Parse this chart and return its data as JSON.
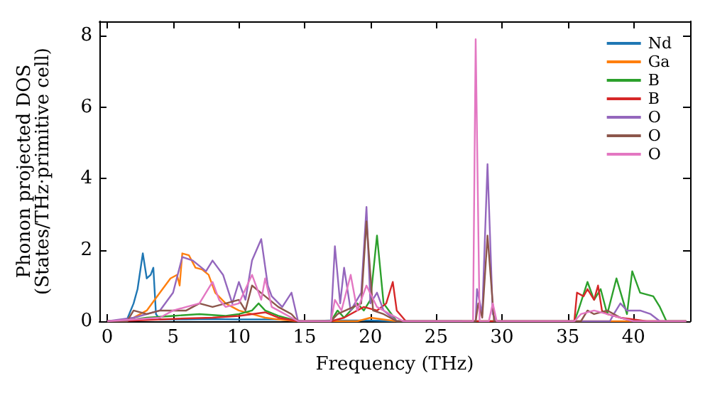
{
  "chart_data": {
    "type": "line",
    "xlabel": "Frequency (THz)",
    "ylabel": "Phonon projected DOS\n(States/THz·primitive cell)",
    "xlim": [
      -0.6,
      44.3
    ],
    "xticks": [
      0,
      5,
      10,
      15,
      20,
      25,
      30,
      35,
      40
    ],
    "ylim": [
      0,
      8.4
    ],
    "yticks": [
      0,
      2,
      4,
      6,
      8
    ],
    "grid": false,
    "legend": "top right",
    "marker": "none",
    "line_style": "solid",
    "series": [
      {
        "name": "Nd",
        "color": "#1f77b4",
        "x": [
          0,
          1,
          1.5,
          2,
          2.3,
          2.7,
          3.0,
          3.3,
          3.5,
          3.7,
          4,
          6,
          8,
          10,
          12,
          13,
          15,
          17,
          20,
          22,
          27
        ],
        "values": [
          0,
          0.02,
          0.05,
          0.5,
          0.9,
          1.9,
          1.2,
          1.3,
          1.5,
          0.2,
          0.05,
          0.05,
          0.06,
          0.05,
          0.05,
          0.05,
          0,
          0.02,
          0.02,
          0,
          0
        ]
      },
      {
        "name": "Ga",
        "color": "#ff7f0e",
        "x": [
          0,
          1.5,
          3,
          4,
          4.8,
          5.3,
          5.5,
          5.7,
          6.2,
          6.7,
          7.2,
          7.7,
          8.2,
          9,
          10,
          11,
          12,
          13,
          14.5,
          19,
          20,
          21,
          22,
          44
        ],
        "values": [
          0,
          0,
          0.3,
          0.8,
          1.2,
          1.3,
          1.0,
          1.9,
          1.85,
          1.5,
          1.45,
          1.3,
          0.8,
          0.5,
          0.3,
          0.2,
          0.1,
          0.05,
          0,
          0,
          0.1,
          0.05,
          0,
          0
        ]
      },
      {
        "name": "B",
        "color": "#2ca02c",
        "x": [
          0,
          2,
          3,
          5,
          7,
          9,
          10,
          11,
          11.5,
          12,
          13,
          14.5,
          17,
          17.5,
          18,
          19,
          19.5,
          20,
          20.5,
          21,
          22,
          35.5,
          35.8,
          36.5,
          37,
          37.5,
          38,
          38.7,
          39.5,
          39.9,
          40.5,
          41.5,
          42,
          42.5,
          44
        ],
        "values": [
          0,
          0.05,
          0.1,
          0.15,
          0.2,
          0.15,
          0.2,
          0.3,
          0.5,
          0.3,
          0.15,
          0,
          0,
          0.3,
          0.1,
          0.5,
          0.3,
          0.6,
          2.4,
          0.5,
          0,
          0,
          0.3,
          1.1,
          0.6,
          0.9,
          0.2,
          1.2,
          0.2,
          1.4,
          0.8,
          0.7,
          0.4,
          0,
          0
        ]
      },
      {
        "name": "B",
        "color": "#d62728",
        "x": [
          0,
          2,
          4,
          6,
          8,
          10,
          11,
          12,
          13,
          14.5,
          17,
          18,
          19.5,
          20.5,
          21.2,
          21.7,
          22,
          22.7,
          35.5,
          35.7,
          36.2,
          36.5,
          37,
          37.3,
          37.6,
          38,
          39,
          40,
          41,
          44
        ],
        "values": [
          0,
          0.02,
          0.05,
          0.08,
          0.1,
          0.15,
          0.2,
          0.25,
          0.1,
          0,
          0,
          0.1,
          0.4,
          0.3,
          0.5,
          1.1,
          0.3,
          0,
          0,
          0.8,
          0.7,
          0.9,
          0.6,
          1.0,
          0.3,
          0.2,
          0.1,
          0.05,
          0,
          0
        ]
      },
      {
        "name": "O",
        "color": "#9467bd",
        "x": [
          0,
          2,
          4,
          5,
          5.7,
          6.5,
          7.5,
          8,
          8.8,
          9.5,
          10,
          10.5,
          11,
          11.7,
          12.2,
          12.5,
          13.3,
          14,
          14.5,
          17,
          17.3,
          17.7,
          18,
          18.5,
          19.3,
          19.7,
          20,
          20.5,
          21,
          22,
          28,
          28.1,
          28.5,
          28.9,
          29.3,
          29.6,
          38.2,
          38.5,
          39,
          39.5,
          40.5,
          41.3,
          42,
          44
        ],
        "values": [
          0,
          0.1,
          0.3,
          0.8,
          1.8,
          1.7,
          1.4,
          1.7,
          1.3,
          0.5,
          1.1,
          0.6,
          1.7,
          2.3,
          1.0,
          0.7,
          0.4,
          0.8,
          0,
          0,
          2.1,
          0.5,
          1.5,
          0.3,
          0.8,
          3.2,
          0.5,
          0.8,
          0.3,
          0,
          0,
          0.9,
          0.2,
          4.4,
          0.2,
          0,
          0,
          0.2,
          0.5,
          0.3,
          0.3,
          0.2,
          0,
          0
        ]
      },
      {
        "name": "O",
        "color": "#8c564b",
        "x": [
          0,
          1.5,
          2,
          3,
          4,
          5,
          6,
          7,
          8,
          9,
          10,
          10.5,
          11,
          12,
          13,
          14,
          14.5,
          17,
          17.5,
          19.3,
          19.7,
          20.2,
          21,
          22,
          28,
          28.2,
          28.5,
          28.9,
          29.4,
          36,
          36.5,
          37,
          38,
          39,
          40,
          44
        ],
        "values": [
          0,
          0,
          0.3,
          0.2,
          0.3,
          0.3,
          0.3,
          0.5,
          0.4,
          0.5,
          0.6,
          0.3,
          1.0,
          0.7,
          0.4,
          0.2,
          0,
          0,
          0.2,
          0.5,
          2.8,
          0.3,
          0.2,
          0,
          0,
          0.5,
          0.1,
          2.4,
          0,
          0,
          0.3,
          0.2,
          0.3,
          0.1,
          0,
          0
        ]
      },
      {
        "name": "O",
        "color": "#e377c2",
        "x": [
          0,
          2,
          4,
          5,
          6,
          7,
          8,
          8.5,
          9,
          10,
          11,
          11.7,
          12,
          12.5,
          13,
          14,
          14.5,
          17,
          17.3,
          17.8,
          18.5,
          19,
          19.7,
          20.5,
          21.5,
          22.5,
          27.8,
          28.0,
          28.3,
          29,
          29.3,
          29.6,
          35.5,
          36,
          37,
          38,
          40,
          44
        ],
        "values": [
          0,
          0.05,
          0.1,
          0.3,
          0.4,
          0.5,
          1.1,
          0.6,
          0.4,
          0.5,
          1.3,
          0.6,
          1.2,
          0.4,
          0.3,
          0.1,
          0,
          0,
          0.6,
          0.3,
          1.3,
          0.3,
          1.0,
          0.4,
          0.2,
          0,
          0,
          7.9,
          0,
          0,
          0.5,
          0,
          0,
          0.2,
          0.3,
          0.2,
          0,
          0
        ]
      }
    ]
  }
}
